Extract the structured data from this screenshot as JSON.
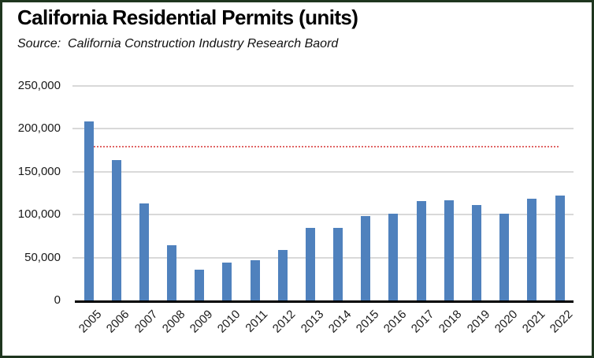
{
  "chart_data": {
    "type": "bar",
    "title": "California Residential Permits (units)",
    "source_note": "Source:  California Construction Industry Research Baord",
    "categories": [
      "2005",
      "2006",
      "2007",
      "2008",
      "2009",
      "2010",
      "2011",
      "2012",
      "2013",
      "2014",
      "2015",
      "2016",
      "2017",
      "2018",
      "2019",
      "2020",
      "2021",
      "2022"
    ],
    "values": [
      209000,
      164000,
      113000,
      64000,
      36000,
      44000,
      47000,
      59000,
      85000,
      85000,
      98000,
      101000,
      116000,
      117000,
      111000,
      101000,
      119000,
      122000
    ],
    "xlabel": "",
    "ylabel": "",
    "ylim": [
      0,
      250000
    ],
    "yticks": [
      {
        "value": 0,
        "label": "0"
      },
      {
        "value": 50000,
        "label": "50,000"
      },
      {
        "value": 100000,
        "label": "100,000"
      },
      {
        "value": 150000,
        "label": "150,000"
      },
      {
        "value": 200000,
        "label": "200,000"
      },
      {
        "value": 250000,
        "label": "250,000"
      }
    ],
    "reference_line": {
      "value": 180000,
      "style": "dotted"
    },
    "grid": "horizontal-only",
    "legend": "none",
    "bar_color": "#4f81bd",
    "reference_line_color": "#e06666",
    "gridline_color": "#d9d9d9",
    "axis_color": "#000000",
    "frame_border_color": "#1e361e"
  }
}
